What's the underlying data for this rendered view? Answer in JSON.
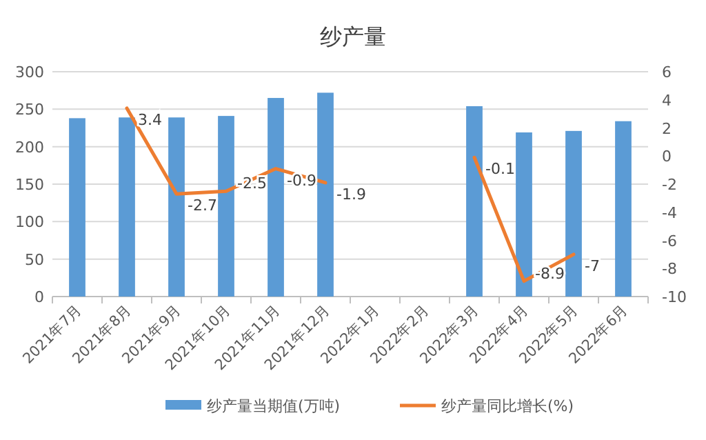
{
  "chart_data": {
    "type": "bar",
    "title": "纱产量",
    "categories": [
      "2021年7月",
      "2021年8月",
      "2021年9月",
      "2021年10月",
      "2021年11月",
      "2021年12月",
      "2022年1月",
      "2022年2月",
      "2022年3月",
      "2022年4月",
      "2022年5月",
      "2022年6月"
    ],
    "series": [
      {
        "name": "纱产量当期值(万吨)",
        "color": "#5b9bd5",
        "values": [
          238,
          239,
          239,
          241,
          265,
          272,
          null,
          null,
          254,
          219,
          221,
          234
        ]
      },
      {
        "name": "纱产量同比增长(%)",
        "type": "line",
        "axis": "y2",
        "color": "#ed7d31",
        "values": [
          null,
          3.4,
          -2.7,
          -2.5,
          -0.9,
          -1.9,
          null,
          null,
          -0.1,
          -8.9,
          -7,
          null
        ],
        "value_labels": [
          null,
          "3.4",
          "-2.7",
          "-2.5",
          "-0.9",
          "-1.9",
          null,
          null,
          "-0.1",
          "-8.9",
          "-7",
          null
        ]
      }
    ],
    "ylim": [
      0,
      300
    ],
    "yticks": [
      0,
      50,
      100,
      150,
      200,
      250,
      300
    ],
    "y2lim": [
      -10,
      6
    ],
    "y2ticks": [
      -10,
      -8,
      -6,
      -4,
      -2,
      0,
      2,
      4,
      6
    ],
    "grid": "y",
    "legend": "bottom"
  }
}
